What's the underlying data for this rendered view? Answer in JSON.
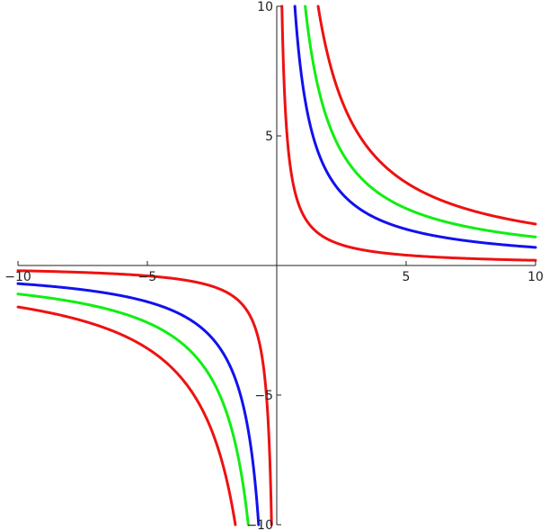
{
  "chart_data": {
    "type": "line",
    "title": "",
    "xlabel": "",
    "ylabel": "",
    "xlim": [
      -10,
      10
    ],
    "ylim": [
      -10,
      10
    ],
    "grid": false,
    "x_ticks": [
      {
        "value": -10,
        "label": "−10"
      },
      {
        "value": -5,
        "label": "−5"
      },
      {
        "value": 5,
        "label": "5"
      },
      {
        "value": 10,
        "label": "10"
      }
    ],
    "y_ticks": [
      {
        "value": 10,
        "label": "10"
      },
      {
        "value": 5,
        "label": "5"
      },
      {
        "value": -5,
        "label": "−5"
      },
      {
        "value": -10,
        "label": "−10"
      }
    ],
    "series": [
      {
        "formula": "y = 2/x",
        "coefficient": 2,
        "color": "#ee1111"
      },
      {
        "formula": "y = 7/x",
        "coefficient": 7,
        "color": "#1111ee"
      },
      {
        "formula": "y = 11/x",
        "coefficient": 11,
        "color": "#11ee11"
      },
      {
        "formula": "y = 16/x",
        "coefficient": 16,
        "color": "#ee1111"
      }
    ]
  }
}
